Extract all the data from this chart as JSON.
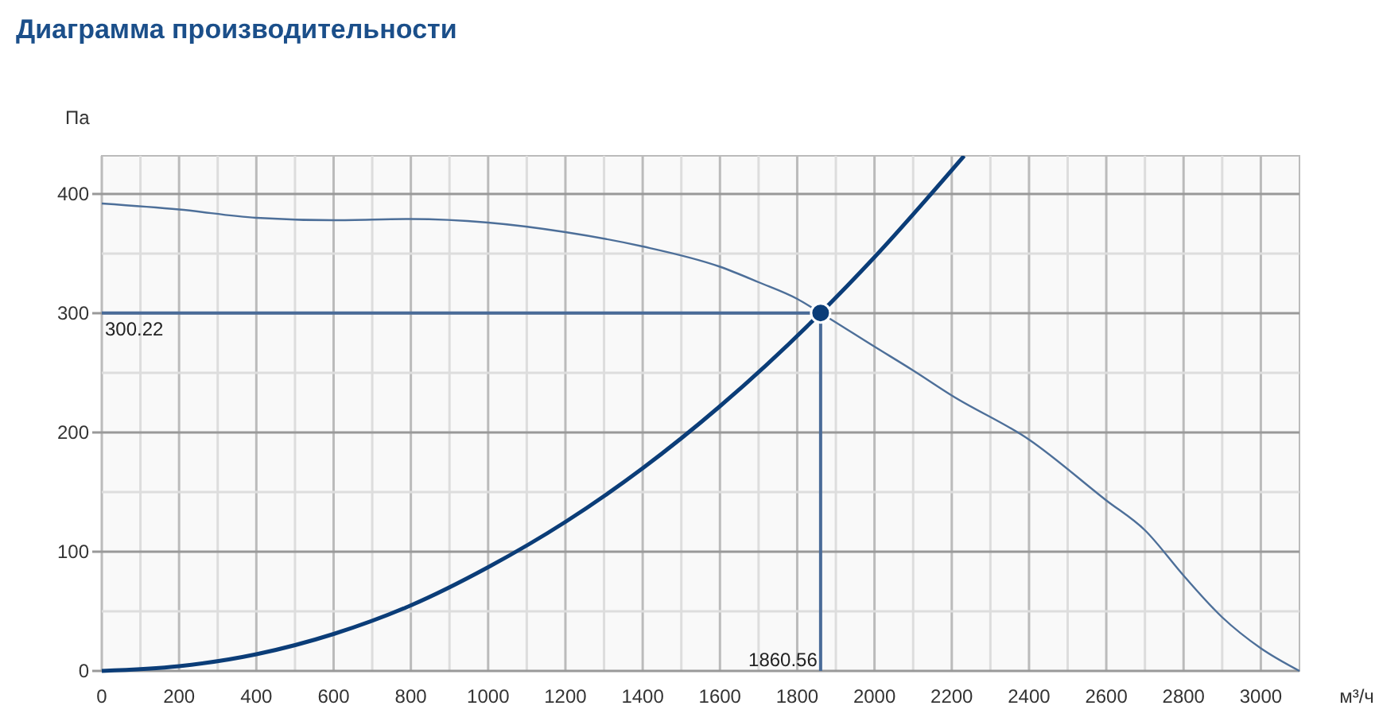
{
  "chart_data": {
    "type": "line",
    "title": "Диаграмма производительности",
    "xlabel": "м³/ч",
    "ylabel": "Па",
    "xlim": [
      0,
      3100
    ],
    "ylim": [
      0,
      432
    ],
    "xticks": [
      0,
      {
        "value": 100,
        "label": null
      },
      200,
      {
        "value": 300,
        "label": null
      },
      400,
      {
        "value": 500,
        "label": null
      },
      600,
      {
        "value": 700,
        "label": null
      },
      800,
      {
        "value": 900,
        "label": null
      },
      1000,
      {
        "value": 1100,
        "label": null
      },
      1200,
      {
        "value": 1300,
        "label": null
      },
      1400,
      {
        "value": 1500,
        "label": null
      },
      1600,
      {
        "value": 1700,
        "label": null
      },
      1800,
      {
        "value": 1900,
        "label": null
      },
      2000,
      {
        "value": 2100,
        "label": null
      },
      2200,
      {
        "value": 2300,
        "label": null
      },
      2400,
      {
        "value": 2500,
        "label": null
      },
      2600,
      {
        "value": 2700,
        "label": null
      },
      2800,
      {
        "value": 2900,
        "label": null
      },
      3000
    ],
    "yticks": [
      0,
      {
        "value": 50,
        "label": null
      },
      100,
      {
        "value": 150,
        "label": null
      },
      200,
      {
        "value": 250,
        "label": null
      },
      300,
      {
        "value": 350,
        "label": null
      },
      400
    ],
    "grid": true,
    "line_style": "solid",
    "series": [
      {
        "color": "#4d6f99",
        "x": [
          0,
          200,
          400,
          600,
          800,
          1000,
          1200,
          1400,
          1600,
          1700,
          1800,
          1860.56,
          2000,
          2100,
          2200,
          2400,
          2600,
          2700,
          2800,
          2900,
          3000,
          3100
        ],
        "values": [
          392,
          387,
          380,
          378,
          379,
          376,
          368,
          356,
          339,
          326,
          312,
          300.22,
          272,
          252,
          231,
          194,
          143,
          118,
          80,
          45,
          19,
          0
        ]
      },
      {
        "color": "#0b3d78",
        "x": [
          0,
          200,
          400,
          600,
          800,
          1000,
          1200,
          1400,
          1600,
          1860.56,
          2000,
          2232
        ],
        "values": [
          0,
          4,
          14,
          31,
          55,
          87,
          125,
          170,
          222,
          300.22,
          347,
          432
        ]
      },
      {
        "type": "scatter",
        "marker": "circle",
        "color": "#0b3d78",
        "x": [
          1860.56
        ],
        "values": [
          300.22
        ]
      }
    ],
    "ref_lines": [
      {
        "axis": "y",
        "value": 300.22,
        "label": "300.22",
        "color": "#4a6b98"
      },
      {
        "axis": "x",
        "value": 1860.56,
        "label": "1860.56",
        "color": "#4a6b98"
      }
    ]
  }
}
